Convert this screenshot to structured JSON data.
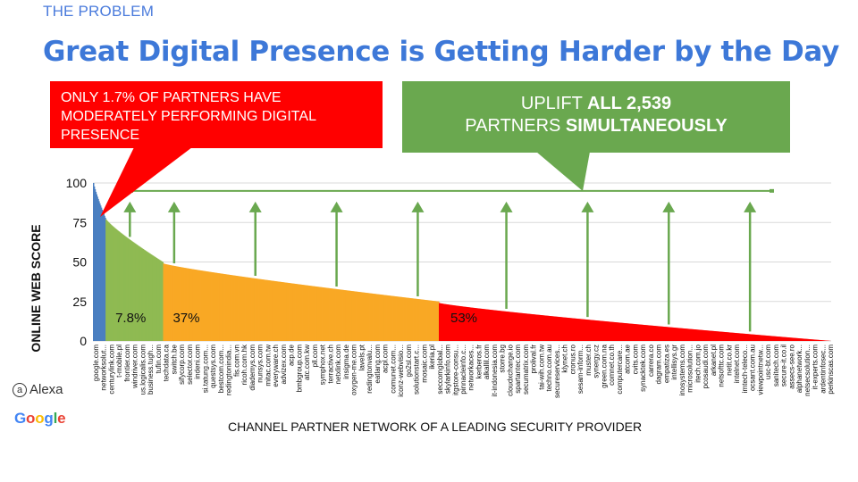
{
  "header": {
    "kicker": "THE PROBLEM",
    "title": "Great Digital Presence is Getting Harder by the Day"
  },
  "callouts": {
    "red_text": "ONLY 1.7% OF PARTNERS HAVE MODERATELY PERFORMING DIGITAL PRESENCE",
    "green_line1_prefix": "UPLIFT ",
    "green_line1_bold": "ALL 2,539",
    "green_line2_prefix": "PARTNERS ",
    "green_line2_bold": "SIMULTANEOUSLY"
  },
  "logos": {
    "alexa": "Alexa",
    "google": "Google"
  },
  "colors": {
    "blue": "#4a7fc1",
    "green": "#8fba52",
    "orange": "#f9a825",
    "red": "#ff0000",
    "uplift": "#6aa84f"
  },
  "chart_data": {
    "type": "bar",
    "title": "",
    "xlabel": "CHANNEL PARTNER NETWORK OF A LEADING SECURITY PROVIDER",
    "ylabel": "ONLINE WEB SCORE",
    "ylim": [
      0,
      100
    ],
    "yticks": [
      0,
      25,
      50,
      75,
      100
    ],
    "target_score": 95,
    "uplift_positions": [
      0.05,
      0.11,
      0.22,
      0.33,
      0.44,
      0.56,
      0.67,
      0.78,
      0.89
    ],
    "segments": [
      {
        "name": "top",
        "color_key": "blue",
        "count": 16,
        "start_value": 100,
        "end_value": 78,
        "label": ""
      },
      {
        "name": "moderate",
        "color_key": "green",
        "count": 73,
        "start_value": 77,
        "end_value": 50,
        "label": "7.8%"
      },
      {
        "name": "mid",
        "color_key": "orange",
        "count": 350,
        "start_value": 49,
        "end_value": 25,
        "label": "37%"
      },
      {
        "name": "low",
        "color_key": "red",
        "count": 498,
        "start_value": 24,
        "end_value": 0,
        "label": "53%"
      }
    ],
    "categories": [
      "google.com",
      "networksolut...",
      "centurylink.com",
      "t-mobile.pl",
      "frontier.com",
      "windriver.com",
      "us.logicalis.com",
      "business.tugh...",
      "tufin.com",
      "techdata.ca",
      "switch.be",
      "sifycorp.com",
      "selector.com",
      "indeni.com",
      "si.tatung.com...",
      "questsys.com",
      "bestcom.com...",
      "redingtonindia...",
      "fis.com.vn",
      "ricoh.com.hk",
      "diademys.com",
      "nunsys.com",
      "mitac.com.tw",
      "everyware.ch",
      "advizex.com",
      "acp.de",
      "bmbgroup.com",
      "atc.com.kw",
      "pll.com",
      "symphox.net",
      "terractive.ch",
      "netxlink.com",
      "insigma.de",
      "oxygen-me.com",
      "lavels.pt",
      "redingtonvalu...",
      "eatlang.com",
      "acpl.com",
      "comunet.com...",
      "iconz-webvisio...",
      "go2sl.com",
      "solutionstart.c...",
      "mosaic.com",
      "ikeria.pl",
      "seccomglobal...",
      "skylarkinfo.com",
      "itgstore-consu...",
      "pinnacleinfo.c...",
      "networkaces...",
      "kerberos.fr",
      "alkallil.com",
      "it-indonesia.com",
      "storre.bg",
      "cloudxchange.io",
      "spartantec.com",
      "secumatrix.com",
      "prolival.fr",
      "tai-wih.com.tw",
      "techno.com.au",
      "secureservices...",
      "klynet.ch",
      "cronus.ro",
      "sesam-inform...",
      "muster.ch",
      "synergy.cz",
      "green.com.na",
      "comnet.co.th",
      "computercare...",
      "atcom.ae",
      "cvits.com",
      "synacktek.com",
      "carrera.co",
      "dagram.com",
      "empatiza.es",
      "intellisys.gr",
      "inosystems.com",
      "microsolution...",
      "itech.com.jo",
      "pcosaudi.com",
      "arkanet.pl",
      "netsofttc.com",
      "netit.co.kr",
      "intelnet.com",
      "imtech-teleco...",
      "ocsant.com.au",
      "viewpointnetw...",
      "usc-bt.com",
      "sanitech.com",
      "secure-it.co.il",
      "assecs-see.ro",
      "alphanetwork...",
      "netsecsolution...",
      "it-experts.com",
      "ardentinfosec...",
      "perkinscas.com"
    ]
  }
}
